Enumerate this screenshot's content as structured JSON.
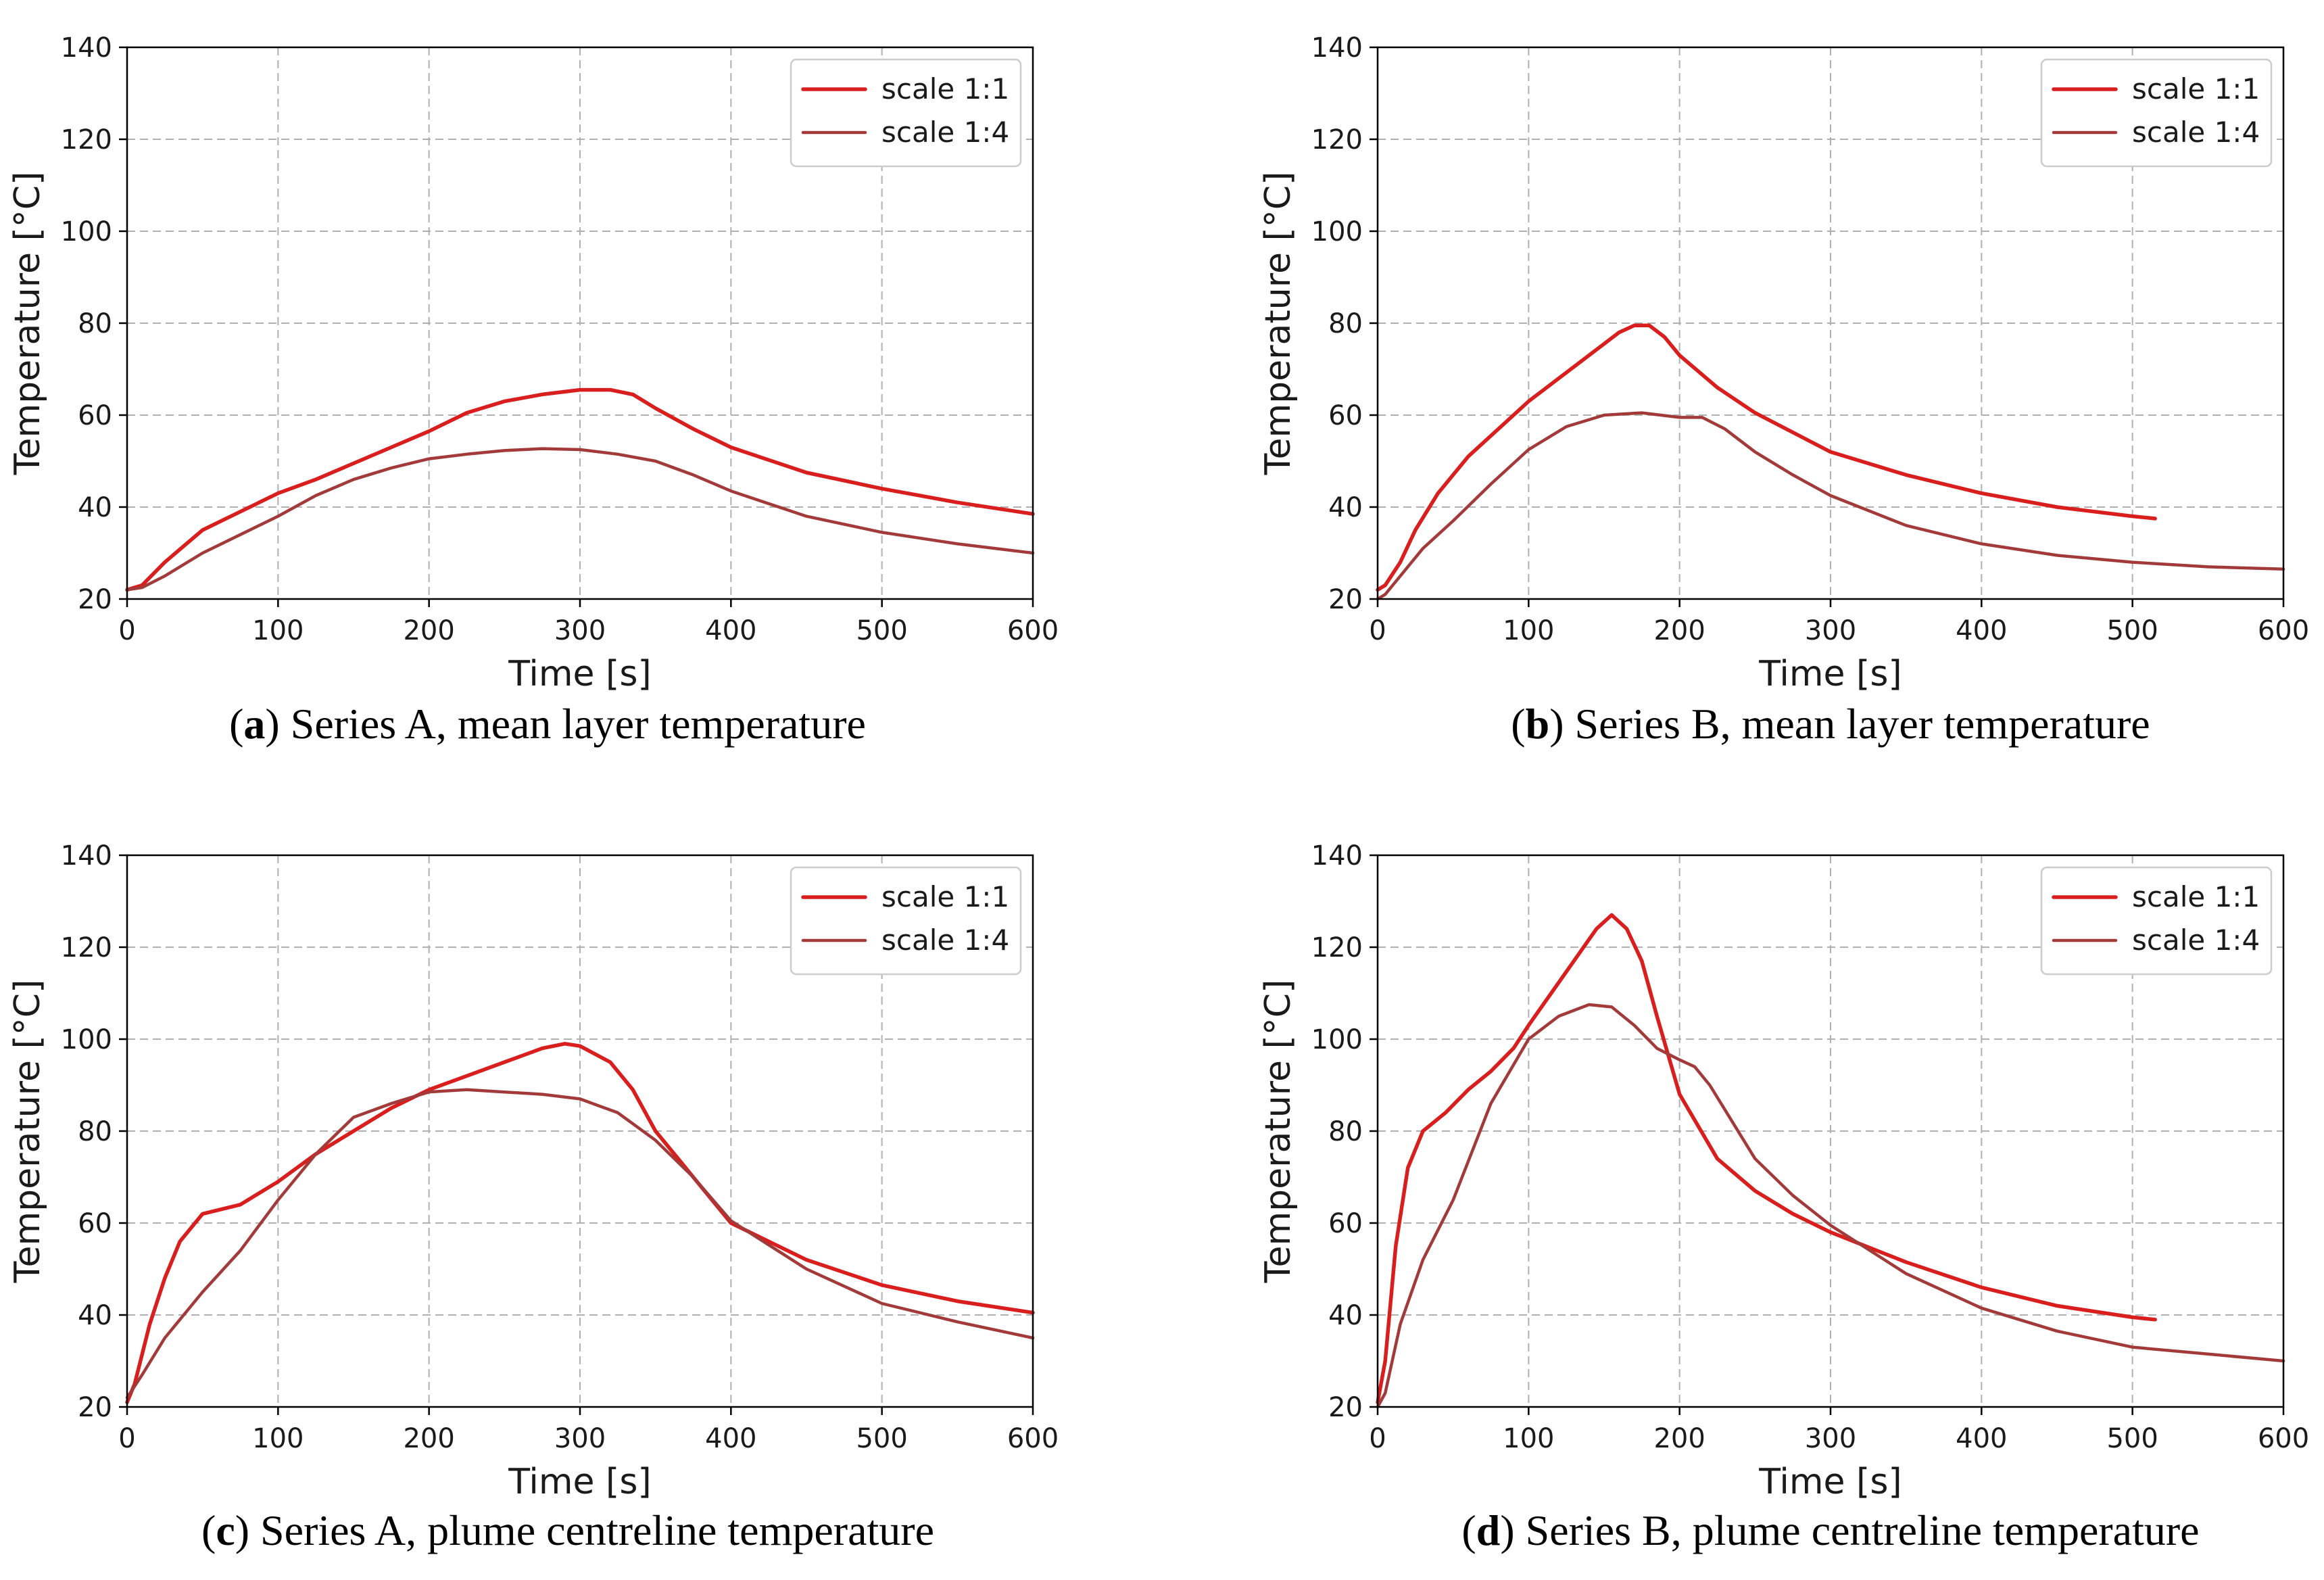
{
  "colors": {
    "scale_1_1": "#d91e1e",
    "scale_1_4": "#a33a3a"
  },
  "chart_data": [
    {
      "id": "a",
      "type": "line",
      "caption_letter": "a",
      "caption_text": "Series A, mean layer temperature",
      "xlabel": "Time [s]",
      "ylabel": "Temperature [°C]",
      "xlim": [
        0,
        600
      ],
      "ylim": [
        20,
        140
      ],
      "xticks": [
        0,
        100,
        200,
        300,
        400,
        500,
        600
      ],
      "yticks": [
        20,
        40,
        60,
        80,
        100,
        120,
        140
      ],
      "grid": true,
      "legend_position": "top-right",
      "series": [
        {
          "name": "scale 1:1",
          "color_key": "scale_1_1",
          "x": [
            0,
            10,
            25,
            50,
            75,
            100,
            125,
            150,
            175,
            200,
            225,
            250,
            275,
            300,
            320,
            335,
            350,
            375,
            400,
            450,
            500,
            550,
            600
          ],
          "y": [
            22,
            23,
            28,
            35,
            39,
            43,
            46,
            49.5,
            53,
            56.5,
            60.5,
            63,
            64.5,
            65.5,
            65.5,
            64.5,
            61.5,
            57,
            53,
            47.5,
            44,
            41,
            38.5
          ]
        },
        {
          "name": "scale 1:4",
          "color_key": "scale_1_4",
          "x": [
            0,
            10,
            25,
            50,
            75,
            100,
            125,
            150,
            175,
            200,
            225,
            250,
            275,
            300,
            325,
            350,
            375,
            400,
            450,
            500,
            550,
            600
          ],
          "y": [
            22,
            22.5,
            25,
            30,
            34,
            38,
            42.5,
            46,
            48.5,
            50.5,
            51.5,
            52.3,
            52.7,
            52.5,
            51.5,
            50,
            47,
            43.5,
            38,
            34.5,
            32,
            30
          ]
        }
      ]
    },
    {
      "id": "b",
      "type": "line",
      "caption_letter": "b",
      "caption_text": "Series B, mean layer temperature",
      "xlabel": "Time [s]",
      "ylabel": "Temperature [°C]",
      "xlim": [
        0,
        600
      ],
      "ylim": [
        20,
        140
      ],
      "xticks": [
        0,
        100,
        200,
        300,
        400,
        500,
        600
      ],
      "yticks": [
        20,
        40,
        60,
        80,
        100,
        120,
        140
      ],
      "grid": true,
      "legend_position": "top-right",
      "series": [
        {
          "name": "scale 1:1",
          "color_key": "scale_1_1",
          "x": [
            0,
            5,
            15,
            25,
            40,
            60,
            80,
            100,
            120,
            140,
            160,
            170,
            180,
            190,
            200,
            225,
            250,
            300,
            350,
            400,
            450,
            500,
            515
          ],
          "y": [
            22,
            23,
            28,
            35,
            43,
            51,
            57,
            63,
            68,
            73,
            78,
            79.5,
            79.5,
            77,
            73,
            66,
            60.5,
            52,
            47,
            43,
            40,
            38,
            37.5
          ]
        },
        {
          "name": "scale 1:4",
          "color_key": "scale_1_4",
          "x": [
            0,
            5,
            15,
            30,
            50,
            75,
            100,
            125,
            150,
            175,
            200,
            215,
            230,
            250,
            275,
            300,
            350,
            400,
            450,
            500,
            550,
            600
          ],
          "y": [
            20,
            21,
            25,
            31,
            37,
            45,
            52.5,
            57.5,
            60,
            60.5,
            59.5,
            59.5,
            57,
            52,
            47,
            42.5,
            36,
            32,
            29.5,
            28,
            27,
            26.5
          ]
        }
      ]
    },
    {
      "id": "c",
      "type": "line",
      "caption_letter": "c",
      "caption_text": "Series A, plume centreline temperature",
      "xlabel": "Time [s]",
      "ylabel": "Temperature [°C]",
      "xlim": [
        0,
        600
      ],
      "ylim": [
        20,
        140
      ],
      "xticks": [
        0,
        100,
        200,
        300,
        400,
        500,
        600
      ],
      "yticks": [
        20,
        40,
        60,
        80,
        100,
        120,
        140
      ],
      "grid": true,
      "legend_position": "top-right",
      "series": [
        {
          "name": "scale 1:1",
          "color_key": "scale_1_1",
          "x": [
            0,
            5,
            15,
            25,
            35,
            50,
            75,
            100,
            125,
            150,
            175,
            200,
            225,
            250,
            275,
            290,
            300,
            320,
            335,
            350,
            375,
            400,
            450,
            500,
            550,
            600
          ],
          "y": [
            21,
            25,
            38,
            48,
            56,
            62,
            64,
            69,
            75,
            80,
            85,
            89,
            92,
            95,
            98,
            99,
            98.5,
            95,
            89,
            80,
            70,
            60,
            52,
            46.5,
            43,
            40.5
          ]
        },
        {
          "name": "scale 1:4",
          "color_key": "scale_1_4",
          "x": [
            0,
            10,
            25,
            50,
            75,
            100,
            125,
            150,
            175,
            200,
            225,
            250,
            275,
            300,
            325,
            350,
            375,
            400,
            450,
            500,
            550,
            600
          ],
          "y": [
            22,
            27,
            35,
            45,
            54,
            65,
            75,
            83,
            86,
            88.5,
            89,
            88.5,
            88,
            87,
            84,
            78,
            70,
            60.5,
            50,
            42.5,
            38.5,
            35
          ]
        }
      ]
    },
    {
      "id": "d",
      "type": "line",
      "caption_letter": "d",
      "caption_text": "Series B, plume centreline temperature",
      "xlabel": "Time [s]",
      "ylabel": "Temperature [°C]",
      "xlim": [
        0,
        600
      ],
      "ylim": [
        20,
        140
      ],
      "xticks": [
        0,
        100,
        200,
        300,
        400,
        500,
        600
      ],
      "yticks": [
        20,
        40,
        60,
        80,
        100,
        120,
        140
      ],
      "grid": true,
      "legend_position": "top-right",
      "series": [
        {
          "name": "scale 1:1",
          "color_key": "scale_1_1",
          "x": [
            0,
            5,
            12,
            20,
            30,
            45,
            60,
            75,
            90,
            100,
            115,
            130,
            145,
            155,
            165,
            175,
            185,
            200,
            225,
            250,
            275,
            300,
            350,
            400,
            450,
            500,
            515
          ],
          "y": [
            21,
            30,
            55,
            72,
            80,
            84,
            89,
            93,
            98,
            103,
            110,
            117,
            124,
            127,
            124,
            117,
            105,
            88,
            74,
            67,
            62,
            58,
            51.5,
            46,
            42,
            39.5,
            39
          ]
        },
        {
          "name": "scale 1:4",
          "color_key": "scale_1_4",
          "x": [
            0,
            5,
            15,
            30,
            50,
            75,
            100,
            120,
            140,
            155,
            170,
            185,
            200,
            210,
            220,
            235,
            250,
            275,
            300,
            350,
            400,
            450,
            500,
            550,
            600
          ],
          "y": [
            20,
            23,
            38,
            52,
            65,
            86,
            100,
            105,
            107.5,
            107,
            103,
            98,
            95.5,
            94,
            90,
            82,
            74,
            66,
            59.5,
            49,
            41.5,
            36.5,
            33,
            31.5,
            30
          ]
        }
      ]
    }
  ]
}
